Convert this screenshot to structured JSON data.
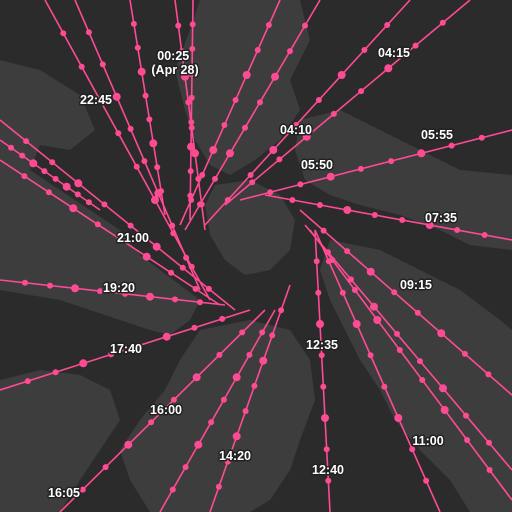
{
  "map": {
    "background_color": "#2b2b2b",
    "land_color": "#3d3d3d",
    "track_color": "#ff4a94",
    "time_labels": [
      {
        "text": "00:25",
        "subtext": "(Apr 28)"
      },
      {
        "text": "04:15"
      },
      {
        "text": "22:45"
      },
      {
        "text": "04:10"
      },
      {
        "text": "05:55"
      },
      {
        "text": "05:50"
      },
      {
        "text": "07:35"
      },
      {
        "text": "21:00"
      },
      {
        "text": "19:20"
      },
      {
        "text": "09:15"
      },
      {
        "text": "17:40"
      },
      {
        "text": "12:35"
      },
      {
        "text": "16:00"
      },
      {
        "text": "11:00"
      },
      {
        "text": "14:20"
      },
      {
        "text": "12:40"
      },
      {
        "text": "16:05"
      }
    ]
  }
}
